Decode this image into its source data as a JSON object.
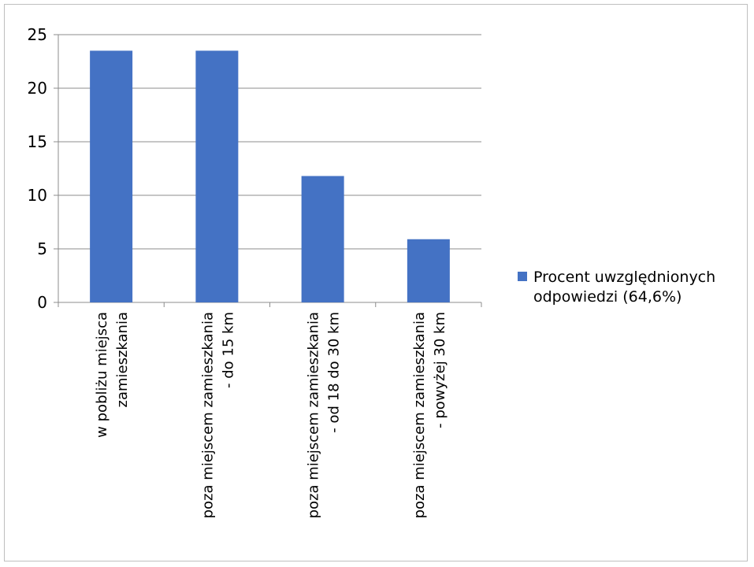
{
  "chart_data": {
    "type": "bar",
    "categories": [
      [
        "w pobliżu miejsca",
        "zamieszkania"
      ],
      [
        "poza miejscem zamieszkania",
        "- do 15 km"
      ],
      [
        "poza miejscem zamieszkania",
        "- od 18 do 30 km"
      ],
      [
        "poza miejscem zamieszkania",
        "- powyżej 30 km"
      ]
    ],
    "series": [
      {
        "name": "Procent uwzględnionych odpowiedzi (64,6%)",
        "legend_lines": [
          "Procent uwzględnionych",
          "odpowiedzi (64,6%)"
        ],
        "values": [
          23.5,
          23.5,
          11.8,
          5.9
        ],
        "color": "#4472c4"
      }
    ],
    "y_ticks": [
      "0",
      "5",
      "10",
      "15",
      "20",
      "25"
    ],
    "ylim": [
      0,
      25
    ],
    "grid": true,
    "legend_position": "right"
  }
}
